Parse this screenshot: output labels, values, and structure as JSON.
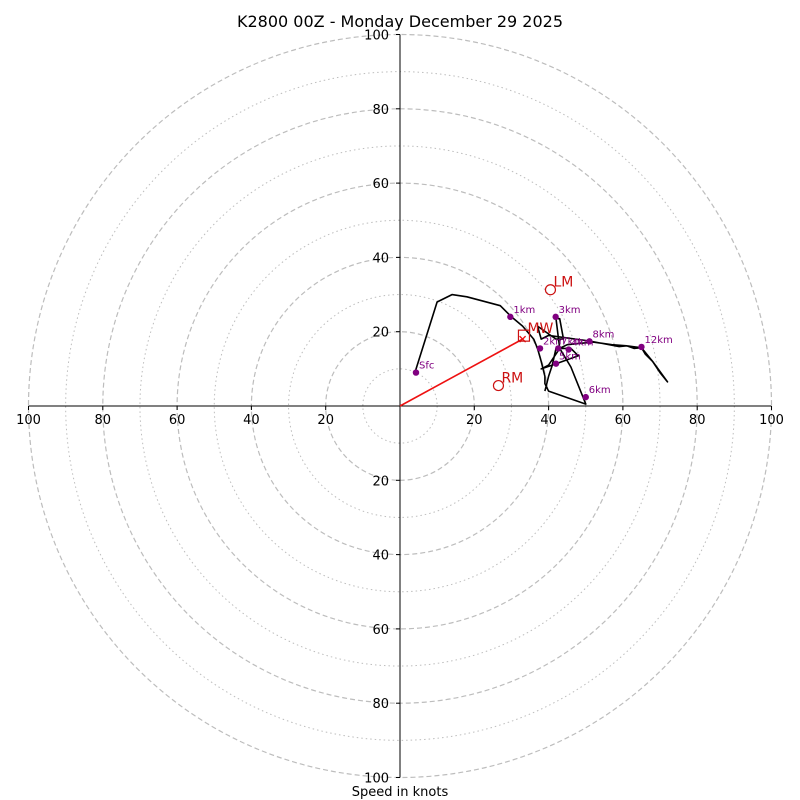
{
  "chart_data": {
    "type": "hodograph",
    "title": "K2800 00Z - Monday December 29 2025",
    "xlabel": "Speed in knots",
    "units": "knots",
    "axis_range": [
      -100,
      100
    ],
    "major_rings": [
      20,
      40,
      60,
      80,
      100
    ],
    "minor_rings": [
      10,
      30,
      50,
      70,
      90
    ],
    "ticks": [
      20,
      40,
      60,
      80,
      100
    ],
    "hodograph_line": [
      [
        4,
        9
      ],
      [
        10,
        28
      ],
      [
        14,
        30
      ],
      [
        18,
        29.4
      ],
      [
        27,
        27
      ],
      [
        30,
        24
      ],
      [
        33,
        21.5
      ],
      [
        36,
        18
      ],
      [
        37,
        15.5
      ],
      [
        38,
        12
      ],
      [
        39,
        8
      ],
      [
        39,
        6
      ],
      [
        40,
        4
      ],
      [
        50,
        0.5
      ],
      [
        46,
        10.5
      ],
      [
        43,
        15.5
      ],
      [
        42,
        23.5
      ],
      [
        43,
        23.5
      ],
      [
        44,
        18
      ],
      [
        42,
        18
      ],
      [
        37,
        21.5
      ],
      [
        38,
        18
      ],
      [
        40,
        19
      ],
      [
        51,
        17.5
      ],
      [
        59,
        16
      ],
      [
        61,
        16.2
      ],
      [
        63,
        15.5
      ],
      [
        65,
        15.7
      ],
      [
        66,
        14
      ],
      [
        68,
        12
      ],
      [
        70,
        9
      ],
      [
        72,
        6.5
      ],
      [
        68,
        12
      ],
      [
        65,
        15.7
      ],
      [
        61,
        16.2
      ],
      [
        57,
        16.5
      ],
      [
        52,
        17.2
      ],
      [
        45,
        16.5
      ],
      [
        43,
        15.5
      ],
      [
        40,
        11
      ],
      [
        38,
        10
      ],
      [
        41,
        11
      ],
      [
        48,
        13.5
      ],
      [
        46,
        15.5
      ],
      [
        42,
        15.5
      ],
      [
        41,
        11
      ],
      [
        40,
        8
      ],
      [
        39,
        4
      ]
    ],
    "height_markers": [
      {
        "label": "Sfc",
        "u": 4.3,
        "v": 9
      },
      {
        "label": "1km",
        "u": 29.7,
        "v": 24
      },
      {
        "label": "2km",
        "u": 37.7,
        "v": 15.5
      },
      {
        "label": "3km",
        "u": 41.9,
        "v": 24
      },
      {
        "label": "4km",
        "u": 45.4,
        "v": 15.2
      },
      {
        "label": "5km",
        "u": 42,
        "v": 11.4
      },
      {
        "label": "6km",
        "u": 50,
        "v": 2.4
      },
      {
        "label": "8km",
        "u": 51,
        "v": 17.4
      },
      {
        "label": "12km",
        "u": 65,
        "v": 15.9
      },
      {
        "label": "7km",
        "u": 42.6,
        "v": 15.5
      }
    ],
    "storm_motions": [
      {
        "label": "LM",
        "u": 40.5,
        "v": 31.3
      },
      {
        "label": "MW",
        "u": 33.5,
        "v": 18.8
      },
      {
        "label": "RM",
        "u": 26.5,
        "v": 5.5
      }
    ],
    "shear_vector": {
      "from": [
        0,
        0
      ],
      "to": [
        33,
        18
      ]
    },
    "colors": {
      "ring": "#bdbdbd",
      "axis": "#000000",
      "hodograph": "#000000",
      "marker": "#800080",
      "storm_motion": "#cc1111",
      "shear_vector": "#ee1111"
    }
  }
}
